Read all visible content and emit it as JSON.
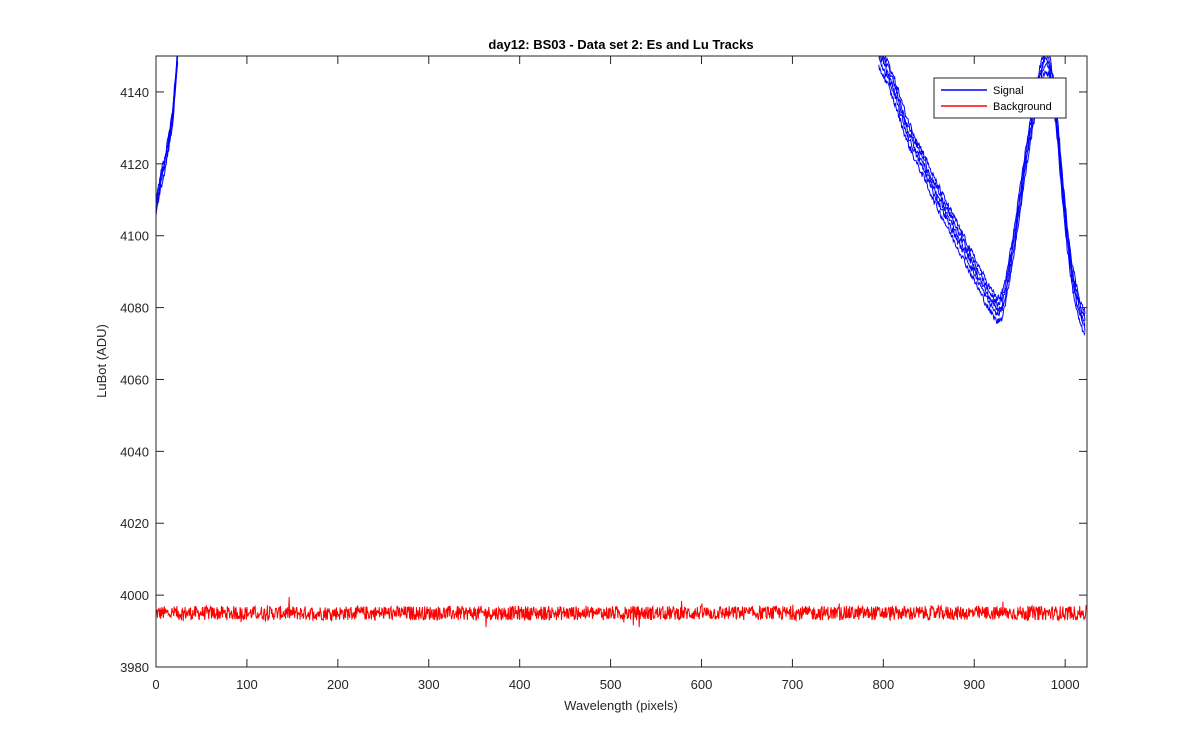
{
  "chart_data": {
    "type": "line",
    "title": "day12: BS03 - Data set 2: Es and Lu Tracks",
    "xlabel": "Wavelength (pixels)",
    "ylabel": "LuBot (ADU)",
    "xlim": [
      0,
      1024
    ],
    "ylim": [
      3980,
      4150
    ],
    "xticks": [
      0,
      100,
      200,
      300,
      400,
      500,
      600,
      700,
      800,
      900,
      1000
    ],
    "yticks": [
      3980,
      4000,
      4020,
      4040,
      4060,
      4080,
      4100,
      4120,
      4140
    ],
    "grid": false,
    "legend": {
      "position": "top-right",
      "entries": [
        "Signal",
        "Background"
      ]
    },
    "series": [
      {
        "name": "Signal",
        "color": "#0000ff",
        "segments": [
          {
            "x": [
              0,
              3,
              6,
              10,
              14,
              18,
              22,
              24
            ],
            "y": [
              4108,
              4112,
              4116,
              4120,
              4126,
              4132,
              4144,
              4150
            ]
          },
          {
            "x": [
              795,
              805,
              815,
              825,
              835,
              845,
              855,
              865,
              875,
              885,
              895,
              905,
              915,
              925,
              930,
              935,
              945,
              955,
              965,
              972,
              978,
              982,
              987,
              992,
              997,
              1002,
              1007,
              1012,
              1017,
              1022
            ],
            "y": [
              4150,
              4145,
              4138,
              4130,
              4124,
              4119,
              4113,
              4108,
              4103,
              4098,
              4093,
              4088,
              4083,
              4079,
              4080,
              4085,
              4100,
              4118,
              4134,
              4143,
              4149,
              4148,
              4140,
              4128,
              4113,
              4100,
              4090,
              4083,
              4078,
              4075
            ]
          }
        ],
        "track_offsets": [
          -3,
          -1,
          0.5,
          2,
          3.5
        ]
      },
      {
        "name": "Background",
        "color": "#ff0000",
        "x_range": [
          0,
          1024
        ],
        "mean": 3995,
        "amplitude": 2,
        "min_y": 3990,
        "max_y": 4001
      }
    ]
  }
}
